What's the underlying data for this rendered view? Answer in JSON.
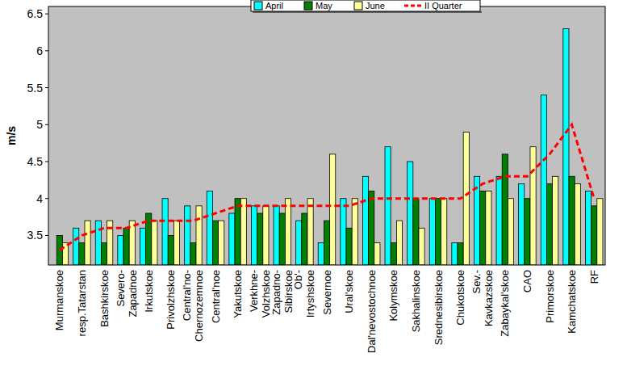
{
  "chart_data": {
    "type": "bar",
    "y_label": "m/s",
    "categories": [
      "Murmanskoe",
      "resp.Tatarstan",
      "Bashkirskoe",
      "Severo-\nZapadnoe",
      "Irkutskoe",
      "Privolzhskoe",
      "Central'no-\nChernozemnoe",
      "Central'noe",
      "Yakutskoe",
      "Verkhne-\nVolzhskoe",
      "Zapadno-\nSibirskoe",
      "Ob'-\nIrtyshskoe",
      "Severnoe",
      "Ural'skoe",
      "Dal'nevostochnoe",
      "Kolymskoe",
      "Sakhalinskoe",
      "Srednesibirskoe",
      "Chukotskoe",
      "Sev.-\nKavkazskoe",
      "Zabaykal'skoe",
      "CAO",
      "Primorskoe",
      "Kamchatskoe",
      "RF"
    ],
    "series": [
      {
        "name": "April",
        "type": "bar",
        "color": "#00ffff",
        "values": [
          3.1,
          3.6,
          3.7,
          3.5,
          3.6,
          4.0,
          3.9,
          4.1,
          3.8,
          3.9,
          3.9,
          3.7,
          3.4,
          4.0,
          4.3,
          4.7,
          4.5,
          4.0,
          3.4,
          4.3,
          4.3,
          4.2,
          5.4,
          6.3,
          4.1
        ]
      },
      {
        "name": "May",
        "type": "bar",
        "color": "#008000",
        "values": [
          3.5,
          3.4,
          3.4,
          3.6,
          3.8,
          3.5,
          3.4,
          3.7,
          4.0,
          3.8,
          3.8,
          3.8,
          3.7,
          3.6,
          4.1,
          3.4,
          4.0,
          4.0,
          3.4,
          4.1,
          4.6,
          4.0,
          4.2,
          4.3,
          3.9
        ]
      },
      {
        "name": "June",
        "type": "bar",
        "color": "#ffff99",
        "values": [
          3.4,
          3.7,
          3.7,
          3.7,
          3.7,
          3.7,
          3.9,
          3.7,
          4.0,
          3.9,
          4.0,
          4.0,
          4.6,
          4.0,
          3.4,
          3.7,
          3.6,
          4.0,
          4.9,
          4.1,
          4.0,
          4.7,
          4.3,
          4.2,
          4.0
        ]
      },
      {
        "name": "II Quarter",
        "type": "line",
        "color": "#ff0000",
        "line_style": "dashed",
        "values": [
          3.3,
          3.5,
          3.6,
          3.6,
          3.7,
          3.7,
          3.7,
          3.8,
          3.9,
          3.9,
          3.9,
          3.9,
          3.9,
          3.9,
          4.0,
          4.0,
          4.0,
          4.0,
          4.0,
          4.2,
          4.3,
          4.3,
          4.6,
          5.0,
          4.0
        ]
      }
    ],
    "ylim": [
      3.1,
      6.6
    ],
    "yticks": [
      3.5,
      4,
      4.5,
      5,
      5.5,
      6,
      6.5
    ],
    "grid": false,
    "legend": "top"
  }
}
